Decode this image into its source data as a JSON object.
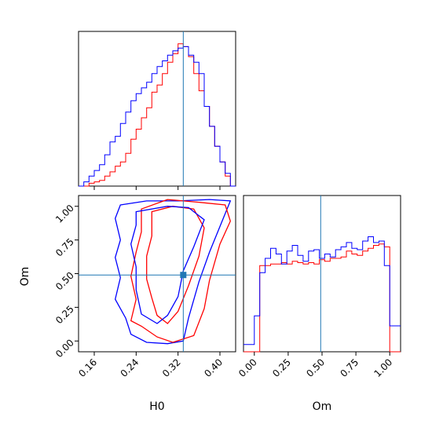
{
  "colors": {
    "red": "#ff0000",
    "blue": "#0000ff",
    "truth": "#1f77b4"
  },
  "chart_data": {
    "type": "corner",
    "parameters": [
      "H0",
      "Om"
    ],
    "truth": {
      "H0": 0.33,
      "Om": 0.49
    },
    "hist_H0": {
      "bin_edges": [
        0.13,
        0.14,
        0.15,
        0.16,
        0.17,
        0.18,
        0.19,
        0.2,
        0.21,
        0.22,
        0.23,
        0.24,
        0.25,
        0.26,
        0.27,
        0.28,
        0.29,
        0.3,
        0.31,
        0.32,
        0.33,
        0.34,
        0.35,
        0.36,
        0.37,
        0.38,
        0.39,
        0.4,
        0.41,
        0.42,
        0.43
      ],
      "series": [
        {
          "color": "red",
          "values": [
            0,
            0,
            2,
            3,
            4,
            7,
            10,
            14,
            17,
            23,
            33,
            40,
            48,
            55,
            66,
            71,
            79,
            87,
            93,
            100,
            98,
            91,
            79,
            67,
            56,
            42,
            28,
            17,
            7,
            0
          ]
        },
        {
          "color": "blue",
          "values": [
            0,
            3,
            7,
            11,
            15,
            22,
            31,
            35,
            44,
            52,
            60,
            65,
            69,
            73,
            79,
            84,
            88,
            92,
            95,
            97,
            98,
            92,
            87,
            79,
            56,
            42,
            28,
            17,
            9,
            0
          ]
        }
      ],
      "xlim": [
        0.13,
        0.43
      ]
    },
    "hist_Om": {
      "bin_edges": [
        -0.08,
        -0.04,
        0.0,
        0.04,
        0.08,
        0.12,
        0.16,
        0.2,
        0.24,
        0.28,
        0.32,
        0.36,
        0.4,
        0.44,
        0.48,
        0.52,
        0.56,
        0.6,
        0.64,
        0.68,
        0.72,
        0.76,
        0.8,
        0.84,
        0.88,
        0.92,
        0.96,
        1.0,
        1.04,
        1.08
      ],
      "series": [
        {
          "color": "red",
          "values": [
            0,
            0,
            0,
            60,
            60,
            61,
            61,
            62,
            61,
            63,
            62,
            61,
            62,
            61,
            64,
            63,
            65,
            65,
            66,
            70,
            68,
            67,
            70,
            72,
            74,
            75,
            73,
            0,
            0
          ]
        },
        {
          "color": "blue",
          "values": [
            5,
            5,
            25,
            55,
            65,
            72,
            68,
            61,
            70,
            74,
            67,
            63,
            70,
            71,
            65,
            68,
            66,
            71,
            73,
            76,
            72,
            71,
            77,
            80,
            76,
            77,
            60,
            18,
            18
          ]
        }
      ],
      "xlim": [
        -0.08,
        1.08
      ]
    },
    "scatter_H0_Om": {
      "xlim": [
        0.13,
        0.43
      ],
      "ylim": [
        -0.08,
        1.08
      ],
      "xticks": [
        "0.16",
        "0.24",
        "0.32",
        "0.40"
      ],
      "yticks": [
        "0.00",
        "0.25",
        "0.50",
        "0.75",
        "1.00"
      ],
      "xlabel": "H0",
      "ylabel": "Om",
      "contours": [
        {
          "color": "blue",
          "level": "outer",
          "points": [
            [
              0.21,
              1.01
            ],
            [
              0.26,
              1.04
            ],
            [
              0.32,
              1.04
            ],
            [
              0.38,
              1.05
            ],
            [
              0.42,
              1.04
            ],
            [
              0.4,
              0.85
            ],
            [
              0.38,
              0.66
            ],
            [
              0.36,
              0.44
            ],
            [
              0.34,
              0.17
            ],
            [
              0.33,
              0.0
            ],
            [
              0.3,
              -0.02
            ],
            [
              0.26,
              -0.01
            ],
            [
              0.23,
              0.05
            ],
            [
              0.22,
              0.17
            ],
            [
              0.2,
              0.31
            ],
            [
              0.21,
              0.47
            ],
            [
              0.2,
              0.62
            ],
            [
              0.21,
              0.75
            ],
            [
              0.2,
              0.91
            ]
          ]
        },
        {
          "color": "red",
          "level": "outer",
          "points": [
            [
              0.25,
              0.98
            ],
            [
              0.3,
              1.05
            ],
            [
              0.36,
              1.03
            ],
            [
              0.41,
              1.01
            ],
            [
              0.42,
              0.89
            ],
            [
              0.4,
              0.72
            ],
            [
              0.38,
              0.45
            ],
            [
              0.37,
              0.24
            ],
            [
              0.35,
              0.04
            ],
            [
              0.31,
              -0.01
            ],
            [
              0.28,
              0.03
            ],
            [
              0.25,
              0.11
            ],
            [
              0.23,
              0.15
            ],
            [
              0.24,
              0.31
            ],
            [
              0.23,
              0.48
            ],
            [
              0.24,
              0.66
            ],
            [
              0.25,
              0.81
            ]
          ]
        },
        {
          "color": "red",
          "level": "inner",
          "points": [
            [
              0.27,
              0.96
            ],
            [
              0.31,
              1.0
            ],
            [
              0.35,
              0.98
            ],
            [
              0.37,
              0.84
            ],
            [
              0.36,
              0.63
            ],
            [
              0.34,
              0.41
            ],
            [
              0.32,
              0.22
            ],
            [
              0.3,
              0.13
            ],
            [
              0.28,
              0.19
            ],
            [
              0.27,
              0.32
            ],
            [
              0.26,
              0.46
            ],
            [
              0.26,
              0.63
            ],
            [
              0.27,
              0.78
            ]
          ]
        },
        {
          "color": "blue",
          "level": "inner",
          "points": [
            [
              0.24,
              0.96
            ],
            [
              0.3,
              1.0
            ],
            [
              0.34,
              0.99
            ],
            [
              0.37,
              0.9
            ],
            [
              0.35,
              0.7
            ],
            [
              0.33,
              0.52
            ],
            [
              0.32,
              0.33
            ],
            [
              0.3,
              0.19
            ],
            [
              0.28,
              0.13
            ],
            [
              0.25,
              0.2
            ],
            [
              0.24,
              0.38
            ],
            [
              0.24,
              0.55
            ],
            [
              0.23,
              0.72
            ],
            [
              0.24,
              0.86
            ]
          ]
        }
      ]
    }
  }
}
